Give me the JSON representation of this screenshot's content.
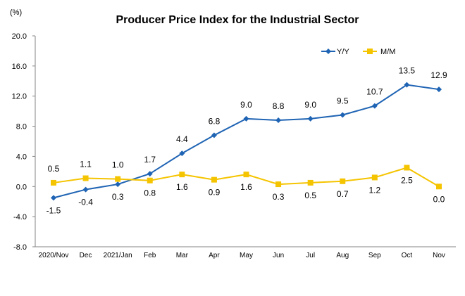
{
  "chart_data": {
    "type": "line",
    "title": "Producer Price Index for the Industrial Sector",
    "unit_label": "(%)",
    "categories": [
      "2020/Nov",
      "Dec",
      "2021/Jan",
      "Feb",
      "Mar",
      "Apr",
      "May",
      "Jun",
      "Jul",
      "Aug",
      "Sep",
      "Oct",
      "Nov"
    ],
    "ylim": [
      -8.0,
      20.0
    ],
    "yticks": [
      "20.0",
      "16.0",
      "12.0",
      "8.0",
      "4.0",
      "0.0",
      "-4.0",
      "-8.0"
    ],
    "grid": false,
    "legend_position": "top-right",
    "series": [
      {
        "name": "Y/Y",
        "color": "#1F64B4",
        "marker": "diamond",
        "values": [
          -1.5,
          -0.4,
          0.3,
          1.7,
          4.4,
          6.8,
          9.0,
          8.8,
          9.0,
          9.5,
          10.7,
          13.5,
          12.9
        ],
        "labels": [
          "-1.5",
          "-0.4",
          "0.3",
          "1.7",
          "4.4",
          "6.8",
          "9.0",
          "8.8",
          "9.0",
          "9.5",
          "10.7",
          "13.5",
          "12.9"
        ]
      },
      {
        "name": "M/M",
        "color": "#F5C400",
        "marker": "square",
        "values": [
          0.5,
          1.1,
          1.0,
          0.8,
          1.6,
          0.9,
          1.6,
          0.3,
          0.5,
          0.7,
          1.2,
          2.5,
          0.0
        ],
        "labels": [
          "0.5",
          "1.1",
          "1.0",
          "0.8",
          "1.6",
          "0.9",
          "1.6",
          "0.3",
          "0.5",
          "0.7",
          "1.2",
          "2.5",
          "0.0"
        ]
      }
    ]
  }
}
